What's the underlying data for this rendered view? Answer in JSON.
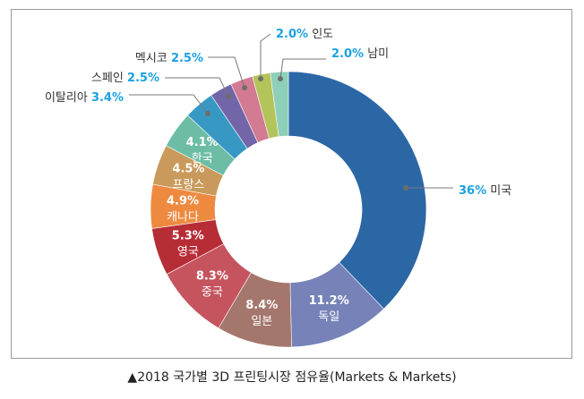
{
  "chart_data": {
    "type": "pie",
    "variant": "donut",
    "title": "▲2018 국가별 3D 프린팅시장 점유율(Markets & Markets)",
    "unit": "%",
    "slices": [
      {
        "label": "미국",
        "value": 36,
        "display": "36%",
        "color": "#2c67a5",
        "placement": "outside"
      },
      {
        "label": "독일",
        "value": 11.2,
        "display": "11.2%",
        "color": "#7682b8",
        "placement": "inside"
      },
      {
        "label": "일본",
        "value": 8.4,
        "display": "8.4%",
        "color": "#a4766c",
        "placement": "inside"
      },
      {
        "label": "중국",
        "value": 8.3,
        "display": "8.3%",
        "color": "#c5545f",
        "placement": "inside"
      },
      {
        "label": "영국",
        "value": 5.3,
        "display": "5.3%",
        "color": "#b72d36",
        "placement": "inside"
      },
      {
        "label": "캐나다",
        "value": 4.9,
        "display": "4.9%",
        "color": "#ee8a40",
        "placement": "inside"
      },
      {
        "label": "프랑스",
        "value": 4.5,
        "display": "4.5%",
        "color": "#c99a5b",
        "placement": "inside"
      },
      {
        "label": "한국",
        "value": 4.1,
        "display": "4.1%",
        "color": "#6dbda6",
        "placement": "inside"
      },
      {
        "label": "이탈리아",
        "value": 3.4,
        "display": "3.4%",
        "color": "#3799c3",
        "placement": "outside"
      },
      {
        "label": "스페인",
        "value": 2.5,
        "display": "2.5%",
        "color": "#7265a8",
        "placement": "outside"
      },
      {
        "label": "멕시코",
        "value": 2.5,
        "display": "2.5%",
        "color": "#d27b93",
        "placement": "outside"
      },
      {
        "label": "인도",
        "value": 2.0,
        "display": "2.0%",
        "color": "#b3c45a",
        "placement": "outside"
      },
      {
        "label": "남미",
        "value": 2.0,
        "display": "2.0%",
        "color": "#8ecfb9",
        "placement": "outside"
      }
    ],
    "value_color": "#1ba1e2"
  }
}
